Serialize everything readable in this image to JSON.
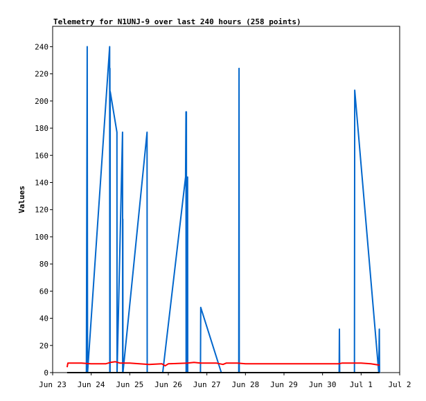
{
  "chart_data": {
    "type": "line",
    "title": "Telemetry for N1UNJ-9 over last 240 hours (258 points)",
    "xlabel": "",
    "ylabel": "Values",
    "xlim": [
      "2023-06-23",
      "2023-07-02"
    ],
    "ylim": [
      0,
      255
    ],
    "x_ticks": [
      "Jun 23",
      "Jun 24",
      "Jun 25",
      "Jun 26",
      "Jun 27",
      "Jun 28",
      "Jun 29",
      "Jun 30",
      "Jul 1",
      "Jul 2"
    ],
    "y_ticks": [
      0,
      20,
      40,
      60,
      80,
      100,
      120,
      140,
      160,
      180,
      200,
      220,
      240
    ],
    "grid": false,
    "legend": "none",
    "series": [
      {
        "color": "#0066cc",
        "points": [
          [
            "2023-06-23T21:00",
            0
          ],
          [
            "2023-06-23T21:30",
            240
          ],
          [
            "2023-06-23T21:45",
            0
          ],
          [
            "2023-06-24T11:30",
            240
          ],
          [
            "2023-06-24T11:35",
            0
          ],
          [
            "2023-06-24T11:40",
            224
          ],
          [
            "2023-06-24T11:45",
            0
          ],
          [
            "2023-06-24T11:50",
            207
          ],
          [
            "2023-06-24T16:00",
            177
          ],
          [
            "2023-06-24T16:05",
            0
          ],
          [
            "2023-06-24T19:30",
            177
          ],
          [
            "2023-06-24T19:35",
            0
          ],
          [
            "2023-06-24T19:40",
            113
          ],
          [
            "2023-06-24T19:45",
            0
          ],
          [
            "2023-06-25T10:45",
            177
          ],
          [
            "2023-06-25T10:50",
            0
          ],
          [
            "2023-06-25T20:30",
            0
          ],
          [
            "2023-06-26T10:45",
            144
          ],
          [
            "2023-06-26T11:00",
            192
          ],
          [
            "2023-06-26T11:05",
            0
          ],
          [
            "2023-06-26T11:15",
            192
          ],
          [
            "2023-06-26T11:20",
            0
          ],
          [
            "2023-06-26T12:00",
            144
          ],
          [
            "2023-06-26T12:05",
            0
          ],
          [
            "2023-06-26T20:00",
            0
          ],
          [
            "2023-06-26T20:10",
            48
          ],
          [
            "2023-06-27T09:00",
            0
          ],
          [
            "2023-06-27T19:50",
            0
          ],
          [
            "2023-06-27T20:00",
            224
          ],
          [
            "2023-06-27T20:10",
            0
          ],
          [
            "2023-06-30T10:20",
            0
          ],
          [
            "2023-06-30T10:30",
            32
          ],
          [
            "2023-06-30T10:40",
            0
          ],
          [
            "2023-06-30T19:50",
            0
          ],
          [
            "2023-06-30T20:00",
            208
          ],
          [
            "2023-07-01T11:00",
            0
          ],
          [
            "2023-07-01T11:20",
            32
          ],
          [
            "2023-07-01T11:30",
            0
          ]
        ]
      },
      {
        "color": "#ff0000",
        "points": [
          [
            "2023-06-23T09:00",
            4
          ],
          [
            "2023-06-23T09:30",
            7
          ],
          [
            "2023-06-23T18:00",
            7
          ],
          [
            "2023-06-24T00:00",
            6.5
          ],
          [
            "2023-06-24T09:00",
            6.5
          ],
          [
            "2023-06-24T12:00",
            7.5
          ],
          [
            "2023-06-24T15:00",
            8
          ],
          [
            "2023-06-24T18:00",
            7
          ],
          [
            "2023-06-25T00:00",
            7
          ],
          [
            "2023-06-25T06:00",
            6.5
          ],
          [
            "2023-06-25T12:00",
            6
          ],
          [
            "2023-06-25T20:00",
            6.5
          ],
          [
            "2023-06-25T22:00",
            5
          ],
          [
            "2023-06-26T00:00",
            6.5
          ],
          [
            "2023-06-26T12:00",
            7
          ],
          [
            "2023-06-26T16:00",
            7.5
          ],
          [
            "2023-06-26T20:00",
            7
          ],
          [
            "2023-06-27T06:00",
            7
          ],
          [
            "2023-06-27T10:00",
            6
          ],
          [
            "2023-06-27T12:00",
            7
          ],
          [
            "2023-06-27T19:00",
            7
          ],
          [
            "2023-06-28T00:00",
            6.5
          ],
          [
            "2023-06-29T00:00",
            6.5
          ],
          [
            "2023-06-30T00:00",
            6.5
          ],
          [
            "2023-06-30T10:00",
            6.5
          ],
          [
            "2023-06-30T12:00",
            7
          ],
          [
            "2023-06-30T20:00",
            7
          ],
          [
            "2023-07-01T00:00",
            7
          ],
          [
            "2023-07-01T06:00",
            6.5
          ],
          [
            "2023-07-01T11:30",
            5.5
          ]
        ]
      },
      {
        "color": "#000000",
        "points": [
          [
            "2023-06-23T09:00",
            0
          ],
          [
            "2023-07-01T11:30",
            0
          ]
        ]
      }
    ]
  }
}
